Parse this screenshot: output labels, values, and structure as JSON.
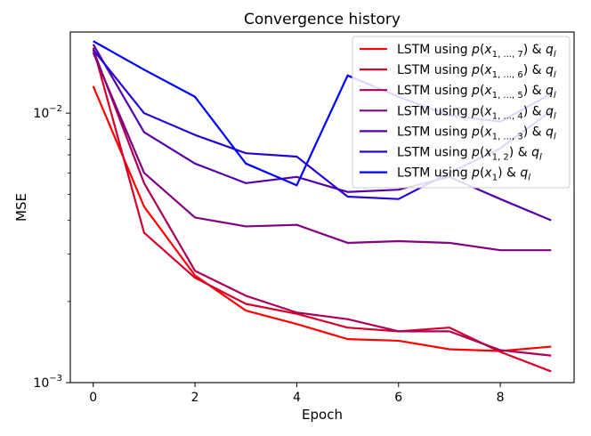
{
  "chart_data": {
    "type": "line",
    "title": "Convergence history",
    "xlabel": "Epoch",
    "ylabel": "MSE",
    "yscale": "log",
    "xlim": [
      -0.45,
      9.45
    ],
    "ylim": [
      0.001,
      0.02
    ],
    "x": [
      0,
      1,
      2,
      3,
      4,
      5,
      6,
      7,
      8,
      9
    ],
    "xticks": [
      0,
      2,
      4,
      6,
      8
    ],
    "xtick_labels": [
      "0",
      "2",
      "4",
      "6",
      "8"
    ],
    "yticks": [
      {
        "value": 0.01,
        "base": "10",
        "exp": "−2"
      },
      {
        "value": 0.001,
        "base": "10",
        "exp": "−3"
      }
    ],
    "legend_position": "upper-right",
    "series": [
      {
        "name": "LSTM using p(x1,...,7) & ql",
        "label_main": "LSTM using ",
        "label_sub": "1, ..., 7",
        "label_tail": " & ",
        "label_q": "l",
        "color": "#ff0000",
        "values": [
          0.0126,
          0.0045,
          0.0025,
          0.00185,
          0.00165,
          0.00145,
          0.00143,
          0.00133,
          0.00131,
          0.00136
        ]
      },
      {
        "name": "LSTM using p(x1,...,6) & ql",
        "label_main": "LSTM using ",
        "label_sub": "1, ..., 6",
        "label_tail": " & ",
        "label_q": "l",
        "color": "#d4002a",
        "values": [
          0.0175,
          0.0036,
          0.00245,
          0.00196,
          0.0018,
          0.0016,
          0.00155,
          0.0016,
          0.0013,
          0.0011
        ]
      },
      {
        "name": "LSTM using p(x1,...,5) & ql",
        "label_main": "LSTM using ",
        "label_sub": "1, ..., 5",
        "label_tail": " & ",
        "label_q": "l",
        "color": "#aa0055",
        "values": [
          0.0172,
          0.0055,
          0.0026,
          0.0021,
          0.00182,
          0.00172,
          0.00155,
          0.00155,
          0.00132,
          0.00126
        ]
      },
      {
        "name": "LSTM using p(x1,...,4) & ql",
        "label_main": "LSTM using ",
        "label_sub": "1, ..., 4",
        "label_tail": " & ",
        "label_q": "l",
        "color": "#80007f",
        "values": [
          0.0168,
          0.006,
          0.0041,
          0.0038,
          0.00385,
          0.0033,
          0.00335,
          0.0033,
          0.0031,
          0.0031
        ]
      },
      {
        "name": "LSTM using p(x1,...,3) & ql",
        "label_main": "LSTM using ",
        "label_sub": "1, ..., 3",
        "label_tail": " & ",
        "label_q": "l",
        "color": "#5500aa",
        "values": [
          0.018,
          0.0085,
          0.0065,
          0.0055,
          0.0058,
          0.0051,
          0.0052,
          0.0058,
          0.0048,
          0.004
        ]
      },
      {
        "name": "LSTM using p(x1,2) & ql",
        "label_main": "LSTM using ",
        "label_sub": "1, 2",
        "label_tail": " & ",
        "label_q": "l",
        "color": "#2a00d4",
        "values": [
          0.0172,
          0.01,
          0.0083,
          0.0071,
          0.0069,
          0.0049,
          0.0048,
          0.006,
          0.0074,
          0.0102
        ]
      },
      {
        "name": "LSTM using p(x1) & ql",
        "label_main": "LSTM using ",
        "label_sub": "1",
        "label_tail": " & ",
        "label_q": "l",
        "color": "#0000ff",
        "values": [
          0.0185,
          0.0145,
          0.0115,
          0.0065,
          0.0054,
          0.0138,
          0.0115,
          0.0098,
          0.0093,
          0.0118
        ]
      }
    ]
  }
}
